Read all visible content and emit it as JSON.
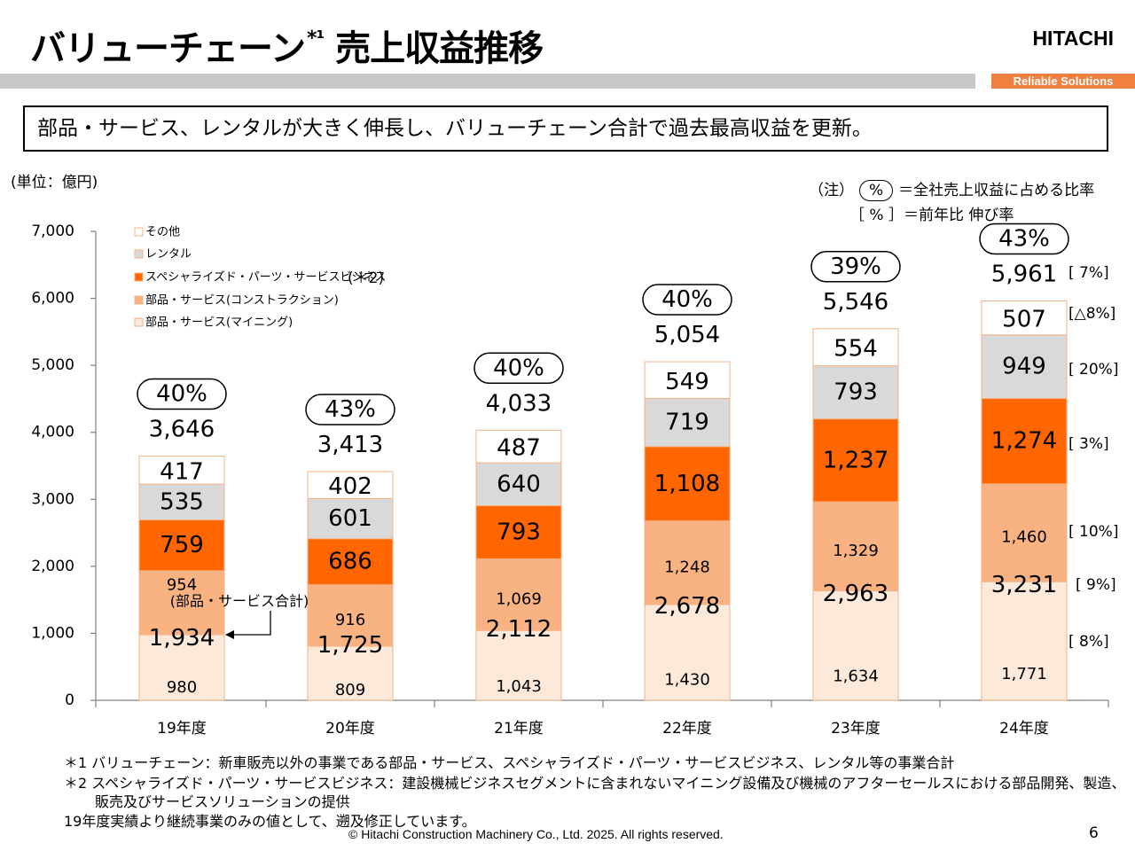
{
  "slide": {
    "title": "バリューチェーン",
    "title_sup": "*¹",
    "title_rest": "売上収益推移",
    "logo": "HITACHI",
    "tagline": "Reliable Solutions",
    "summary": "部品・サービス、レンタルが大きく伸長し、バリューチェーン合計で過去最高収益を更新。",
    "unit": "(単位：億円)",
    "note_prefix": "（注）",
    "note_pill": "%",
    "note_pill_desc": "＝全社売上収益に占める比率",
    "note_bracket": "［ % ］＝前年比 伸び率",
    "footnote1": "＊1 バリューチェーン：新車販売以外の事業である部品・サービス、スペシャライズド・パーツ・サービスビジネス、レンタル等の事業合計",
    "footnote2": "＊2 スペシャライズド・パーツ・サービスビジネス：建設機械ビジネスセグメントに含まれないマイニング設備及び機械のアフターセールスにおける部品開発、製造、",
    "footnote2b": "販売及びサービスソリューションの提供",
    "footnote3": "19年度実績より継続事業のみの値として、遡及修正しています。",
    "copyright": "© Hitachi Construction Machinery Co., Ltd. 2025. All rights reserved.",
    "page": "6"
  },
  "chart_data": {
    "type": "bar",
    "stacked": true,
    "categories": [
      "19年度",
      "20年度",
      "21年度",
      "22年度",
      "23年度",
      "24年度"
    ],
    "ylim": [
      0,
      7000
    ],
    "yticks": [
      "0",
      "1,000",
      "2,000",
      "3,000",
      "4,000",
      "5,000",
      "6,000",
      "7,000"
    ],
    "series": [
      {
        "name": "部品・サービス(マイニング)",
        "color": "#fde9d9",
        "values": [
          980,
          809,
          1043,
          1430,
          1634,
          1771
        ],
        "labels": [
          "980",
          "809",
          "1,043",
          "1,430",
          "1,634",
          "1,771"
        ]
      },
      {
        "name": "部品・サービス(コンストラクション)",
        "color": "#f9b382",
        "values": [
          954,
          916,
          1069,
          1248,
          1329,
          1460
        ],
        "labels": [
          "954",
          "916",
          "1,069",
          "1,248",
          "1,329",
          "1,460"
        ]
      },
      {
        "name": "スペシャライズド・パーツ・サービスビジネス",
        "color": "#ff6600",
        "values": [
          759,
          686,
          793,
          1108,
          1237,
          1274
        ],
        "labels": [
          "759",
          "686",
          "793",
          "1,108",
          "1,237",
          "1,274"
        ]
      },
      {
        "name": "レンタル",
        "color": "#d9d9d9",
        "values": [
          535,
          601,
          640,
          719,
          793,
          949
        ],
        "labels": [
          "535",
          "601",
          "640",
          "719",
          "793",
          "949"
        ]
      },
      {
        "name": "その他",
        "color": "#ffffff",
        "values": [
          417,
          402,
          487,
          549,
          554,
          507
        ],
        "labels": [
          "417",
          "402",
          "487",
          "549",
          "554",
          "507"
        ]
      }
    ],
    "legend_suffix_special": "(＊2)",
    "parts_service_totals": [
      "1,934",
      "1,725",
      "2,112",
      "2,678",
      "2,963",
      "3,231"
    ],
    "parts_service_total_label": "(部品・サービス合計)",
    "totals": [
      "3,646",
      "3,413",
      "4,033",
      "5,054",
      "5,546",
      "5,961"
    ],
    "ratios": [
      "40%",
      "43%",
      "40%",
      "40%",
      "39%",
      "43%"
    ],
    "growth_24": {
      "total": "[ 7%]",
      "その他": "[△8%]",
      "レンタル": "[ 20%]",
      "スペシャライズド": "[ 3%]",
      "コンストラクション": "[ 10%]",
      "部品・サービス合計": "[ 9%]",
      "マイニング": "[ 8%]"
    }
  }
}
